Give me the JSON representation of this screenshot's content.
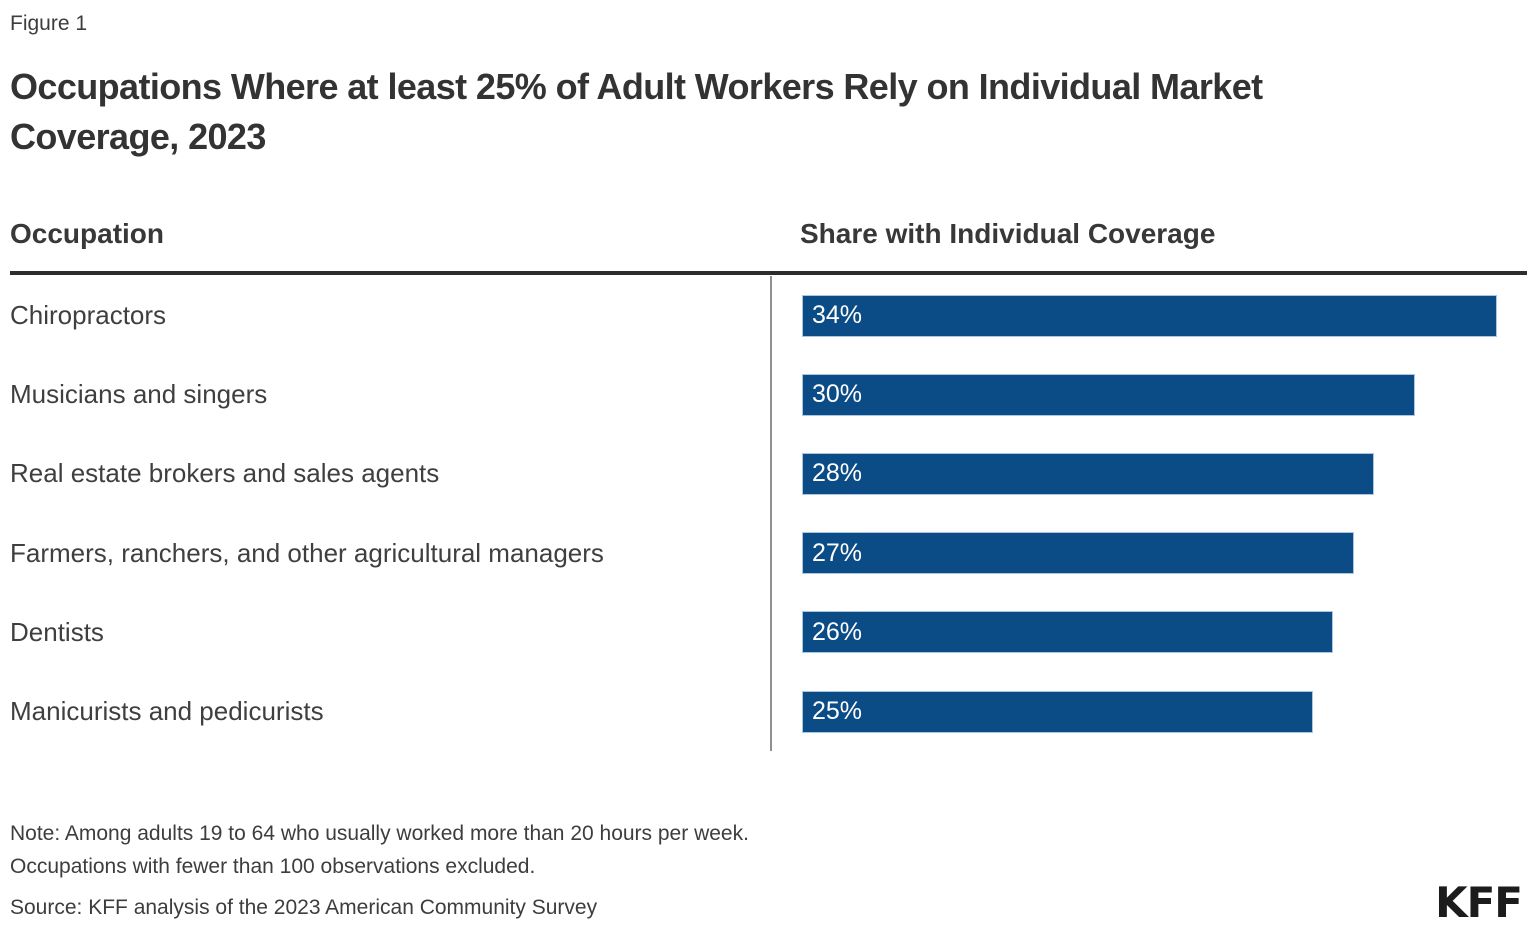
{
  "figure_label": "Figure 1",
  "title_lines": [
    "Occupations Where at least 25% of Adult Workers Rely on Individual Market",
    "Coverage, 2023"
  ],
  "columns": {
    "occupation": "Occupation",
    "share": "Share with Individual Coverage"
  },
  "chart_data": {
    "type": "bar",
    "orientation": "horizontal",
    "title": "Occupations Where at least 25% of Adult Workers Rely on Individual Market Coverage, 2023",
    "categories": [
      "Chiropractors",
      "Musicians and singers",
      "Real estate brokers and sales agents",
      "Farmers, ranchers, and other agricultural managers",
      "Dentists",
      "Manicurists and pedicurists"
    ],
    "values": [
      34,
      30,
      28,
      27,
      26,
      25
    ],
    "value_suffix": "%",
    "xlim": [
      0,
      35
    ],
    "bar_color": "#0c4c86",
    "value_label_color": "#ffffff",
    "grid": false,
    "legend": false
  },
  "notes": {
    "note_line1": "Note: Among adults 19 to 64 who usually worked more than 20 hours per week.",
    "note_line2": "Occupations with fewer than 100 observations excluded.",
    "source": "Source: KFF analysis of the 2023 American Community Survey"
  },
  "logo": "KFF"
}
